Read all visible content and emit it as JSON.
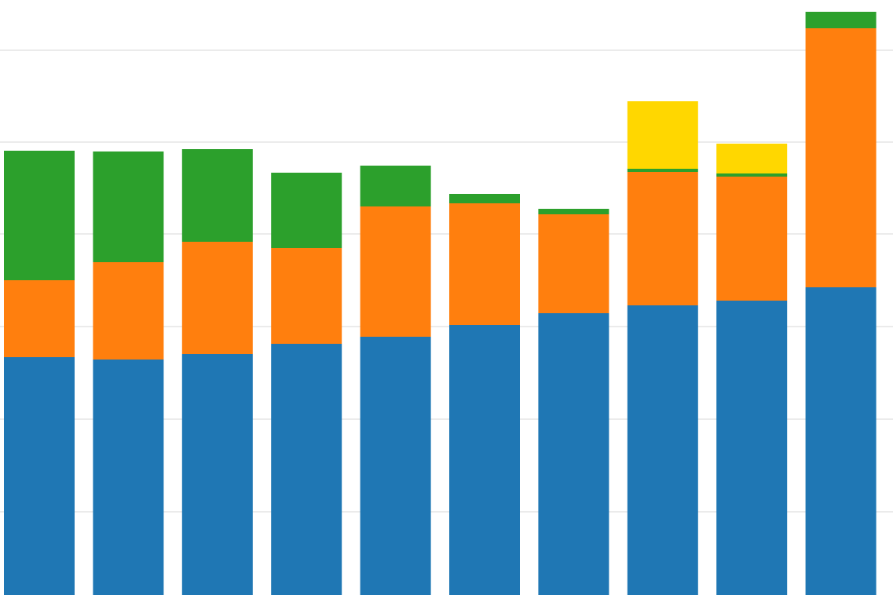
{
  "chart_data": {
    "type": "bar",
    "stacked": true,
    "grid": true,
    "categories": [
      "",
      "",
      "",
      "",
      "",
      "",
      "",
      "",
      "",
      ""
    ],
    "series": [
      {
        "color": "#1f77b4",
        "values": [
          303,
          300,
          307,
          320,
          329,
          344,
          359,
          369,
          375,
          392
        ]
      },
      {
        "color": "#ff7f0e",
        "values": [
          98,
          124,
          143,
          122,
          166,
          155,
          126,
          170,
          158,
          330
        ]
      },
      {
        "color": "#2ca02c",
        "values": [
          165,
          141,
          118,
          96,
          52,
          12,
          7,
          4,
          4,
          21
        ]
      },
      {
        "color": "#ffd700",
        "values": [
          0,
          0,
          0,
          0,
          0,
          0,
          0,
          86,
          38,
          0
        ]
      }
    ],
    "ylim": [
      0,
      758
    ],
    "gridlines": [
      106,
      224,
      342,
      460,
      577,
      694
    ]
  }
}
